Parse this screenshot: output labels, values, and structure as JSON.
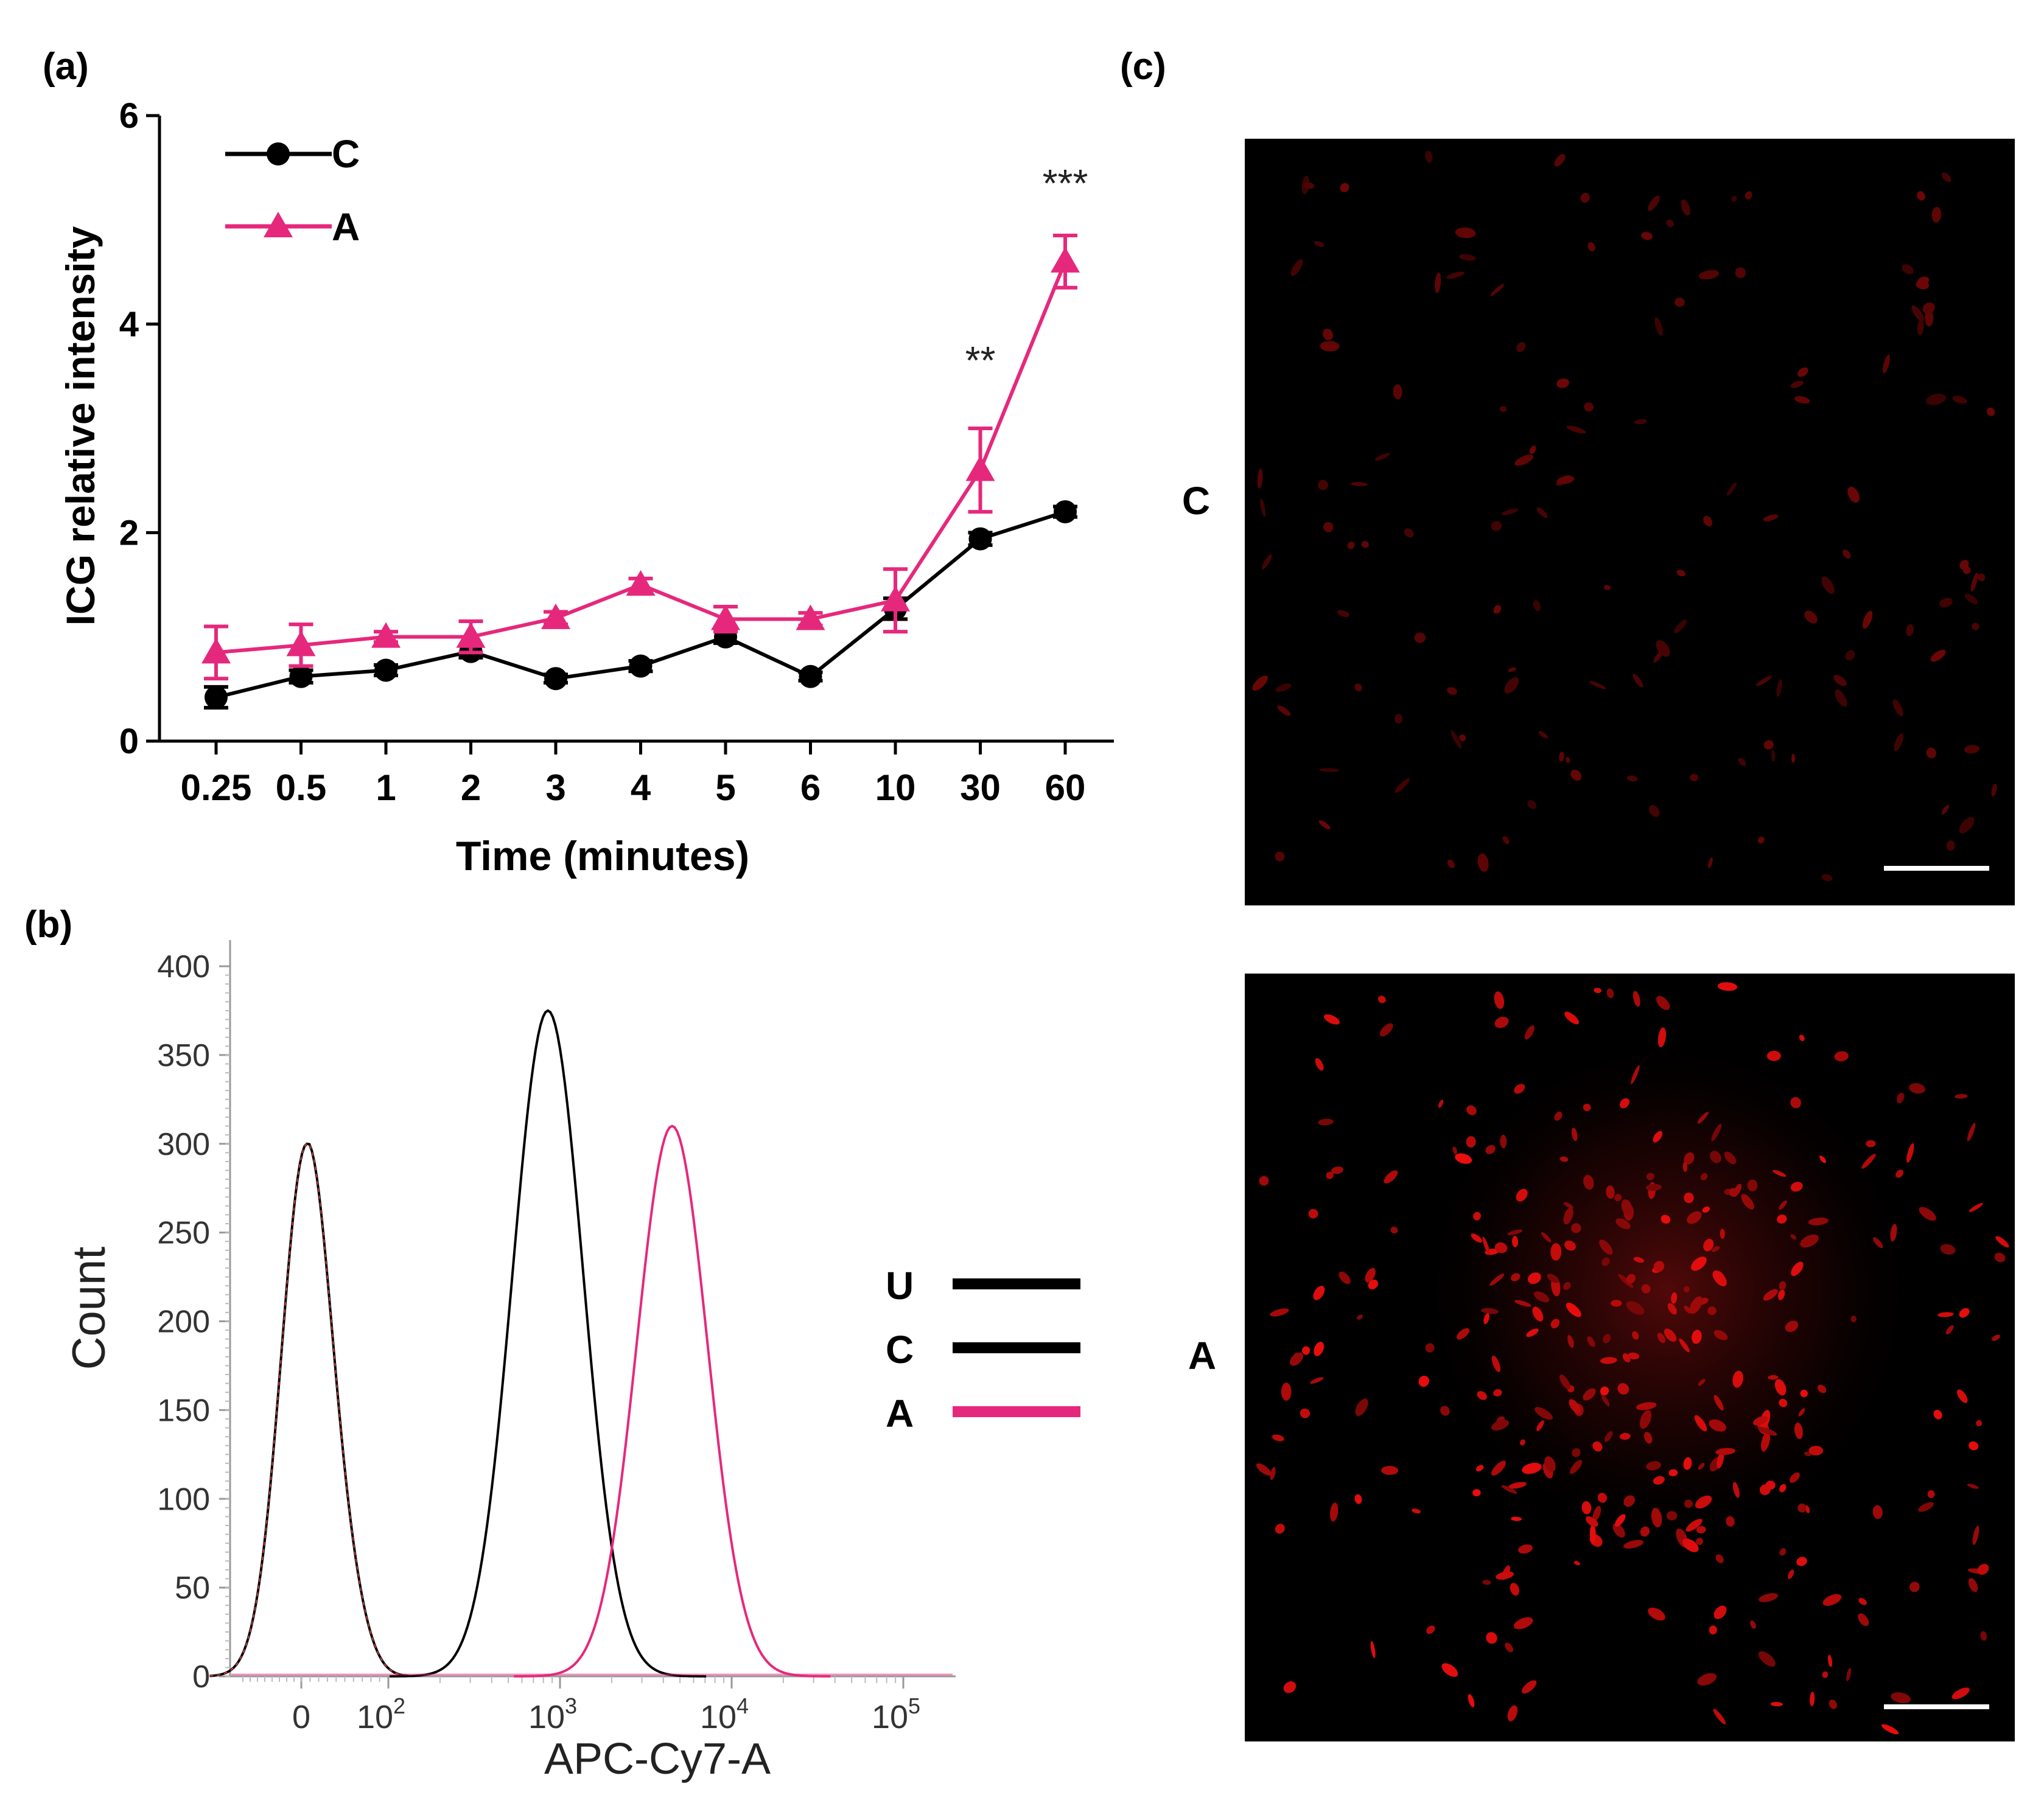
{
  "panels": {
    "a": {
      "label": "(a)"
    },
    "b": {
      "label": "(b)"
    },
    "c": {
      "label": "(c)"
    }
  },
  "chart_data": [
    {
      "id": "a",
      "type": "line",
      "title": "",
      "xlabel": "Time (minutes)",
      "ylabel": "ICG relative intensity",
      "categories": [
        "0.25",
        "0.5",
        "1",
        "2",
        "3",
        "4",
        "5",
        "6",
        "10",
        "30",
        "60"
      ],
      "ylim": [
        0,
        6
      ],
      "yticks": [
        "0",
        "2",
        "4",
        "6"
      ],
      "grid": false,
      "legend_position": "top-left",
      "series": [
        {
          "name": "C",
          "color": "#000000",
          "marker": "circle",
          "values": [
            0.42,
            0.62,
            0.68,
            0.86,
            0.6,
            0.72,
            1.0,
            0.62,
            1.27,
            1.94,
            2.2
          ],
          "errors": [
            0.1,
            0.06,
            0.05,
            0.06,
            0.04,
            0.05,
            0.06,
            0.04,
            0.1,
            0.06,
            0.05
          ]
        },
        {
          "name": "A",
          "color": "#e6287c",
          "marker": "triangle",
          "values": [
            0.85,
            0.92,
            1.0,
            1.0,
            1.18,
            1.5,
            1.17,
            1.17,
            1.35,
            2.6,
            4.6
          ],
          "errors": [
            0.25,
            0.2,
            0.05,
            0.15,
            0.06,
            0.06,
            0.12,
            0.06,
            0.3,
            0.4,
            0.25
          ]
        }
      ],
      "annotations": [
        {
          "category": "30",
          "text": "**",
          "y": 3.7
        },
        {
          "category": "60",
          "text": "***",
          "y": 5.4
        }
      ]
    },
    {
      "id": "b",
      "type": "area",
      "title": "",
      "xlabel": "APC-Cy7-A",
      "ylabel": "Count",
      "ylim": [
        0,
        400
      ],
      "yticks": [
        "0",
        "50",
        "100",
        "150",
        "200",
        "250",
        "300",
        "350",
        "400"
      ],
      "xticks": [
        {
          "value": 0,
          "base": "0",
          "exp": ""
        },
        {
          "value": 100,
          "base": "10",
          "exp": "2"
        },
        {
          "value": 1000,
          "base": "10",
          "exp": "3"
        },
        {
          "value": 10000,
          "base": "10",
          "exp": "4"
        },
        {
          "value": 100000,
          "base": "10",
          "exp": "5"
        }
      ],
      "grid": false,
      "legend_position": "right",
      "series": [
        {
          "name": "U",
          "color": "#000000",
          "peak_at": 10,
          "peak_count": 300
        },
        {
          "name": "C",
          "color": "#000000",
          "peak_at": 850,
          "peak_count": 375
        },
        {
          "name": "A",
          "color": "#e6287c",
          "peak_at": 4500,
          "peak_count": 310
        }
      ]
    }
  ],
  "micrographs": {
    "rows": [
      {
        "label": "C",
        "intensity": "low"
      },
      {
        "label": "A",
        "intensity": "high"
      }
    ]
  }
}
